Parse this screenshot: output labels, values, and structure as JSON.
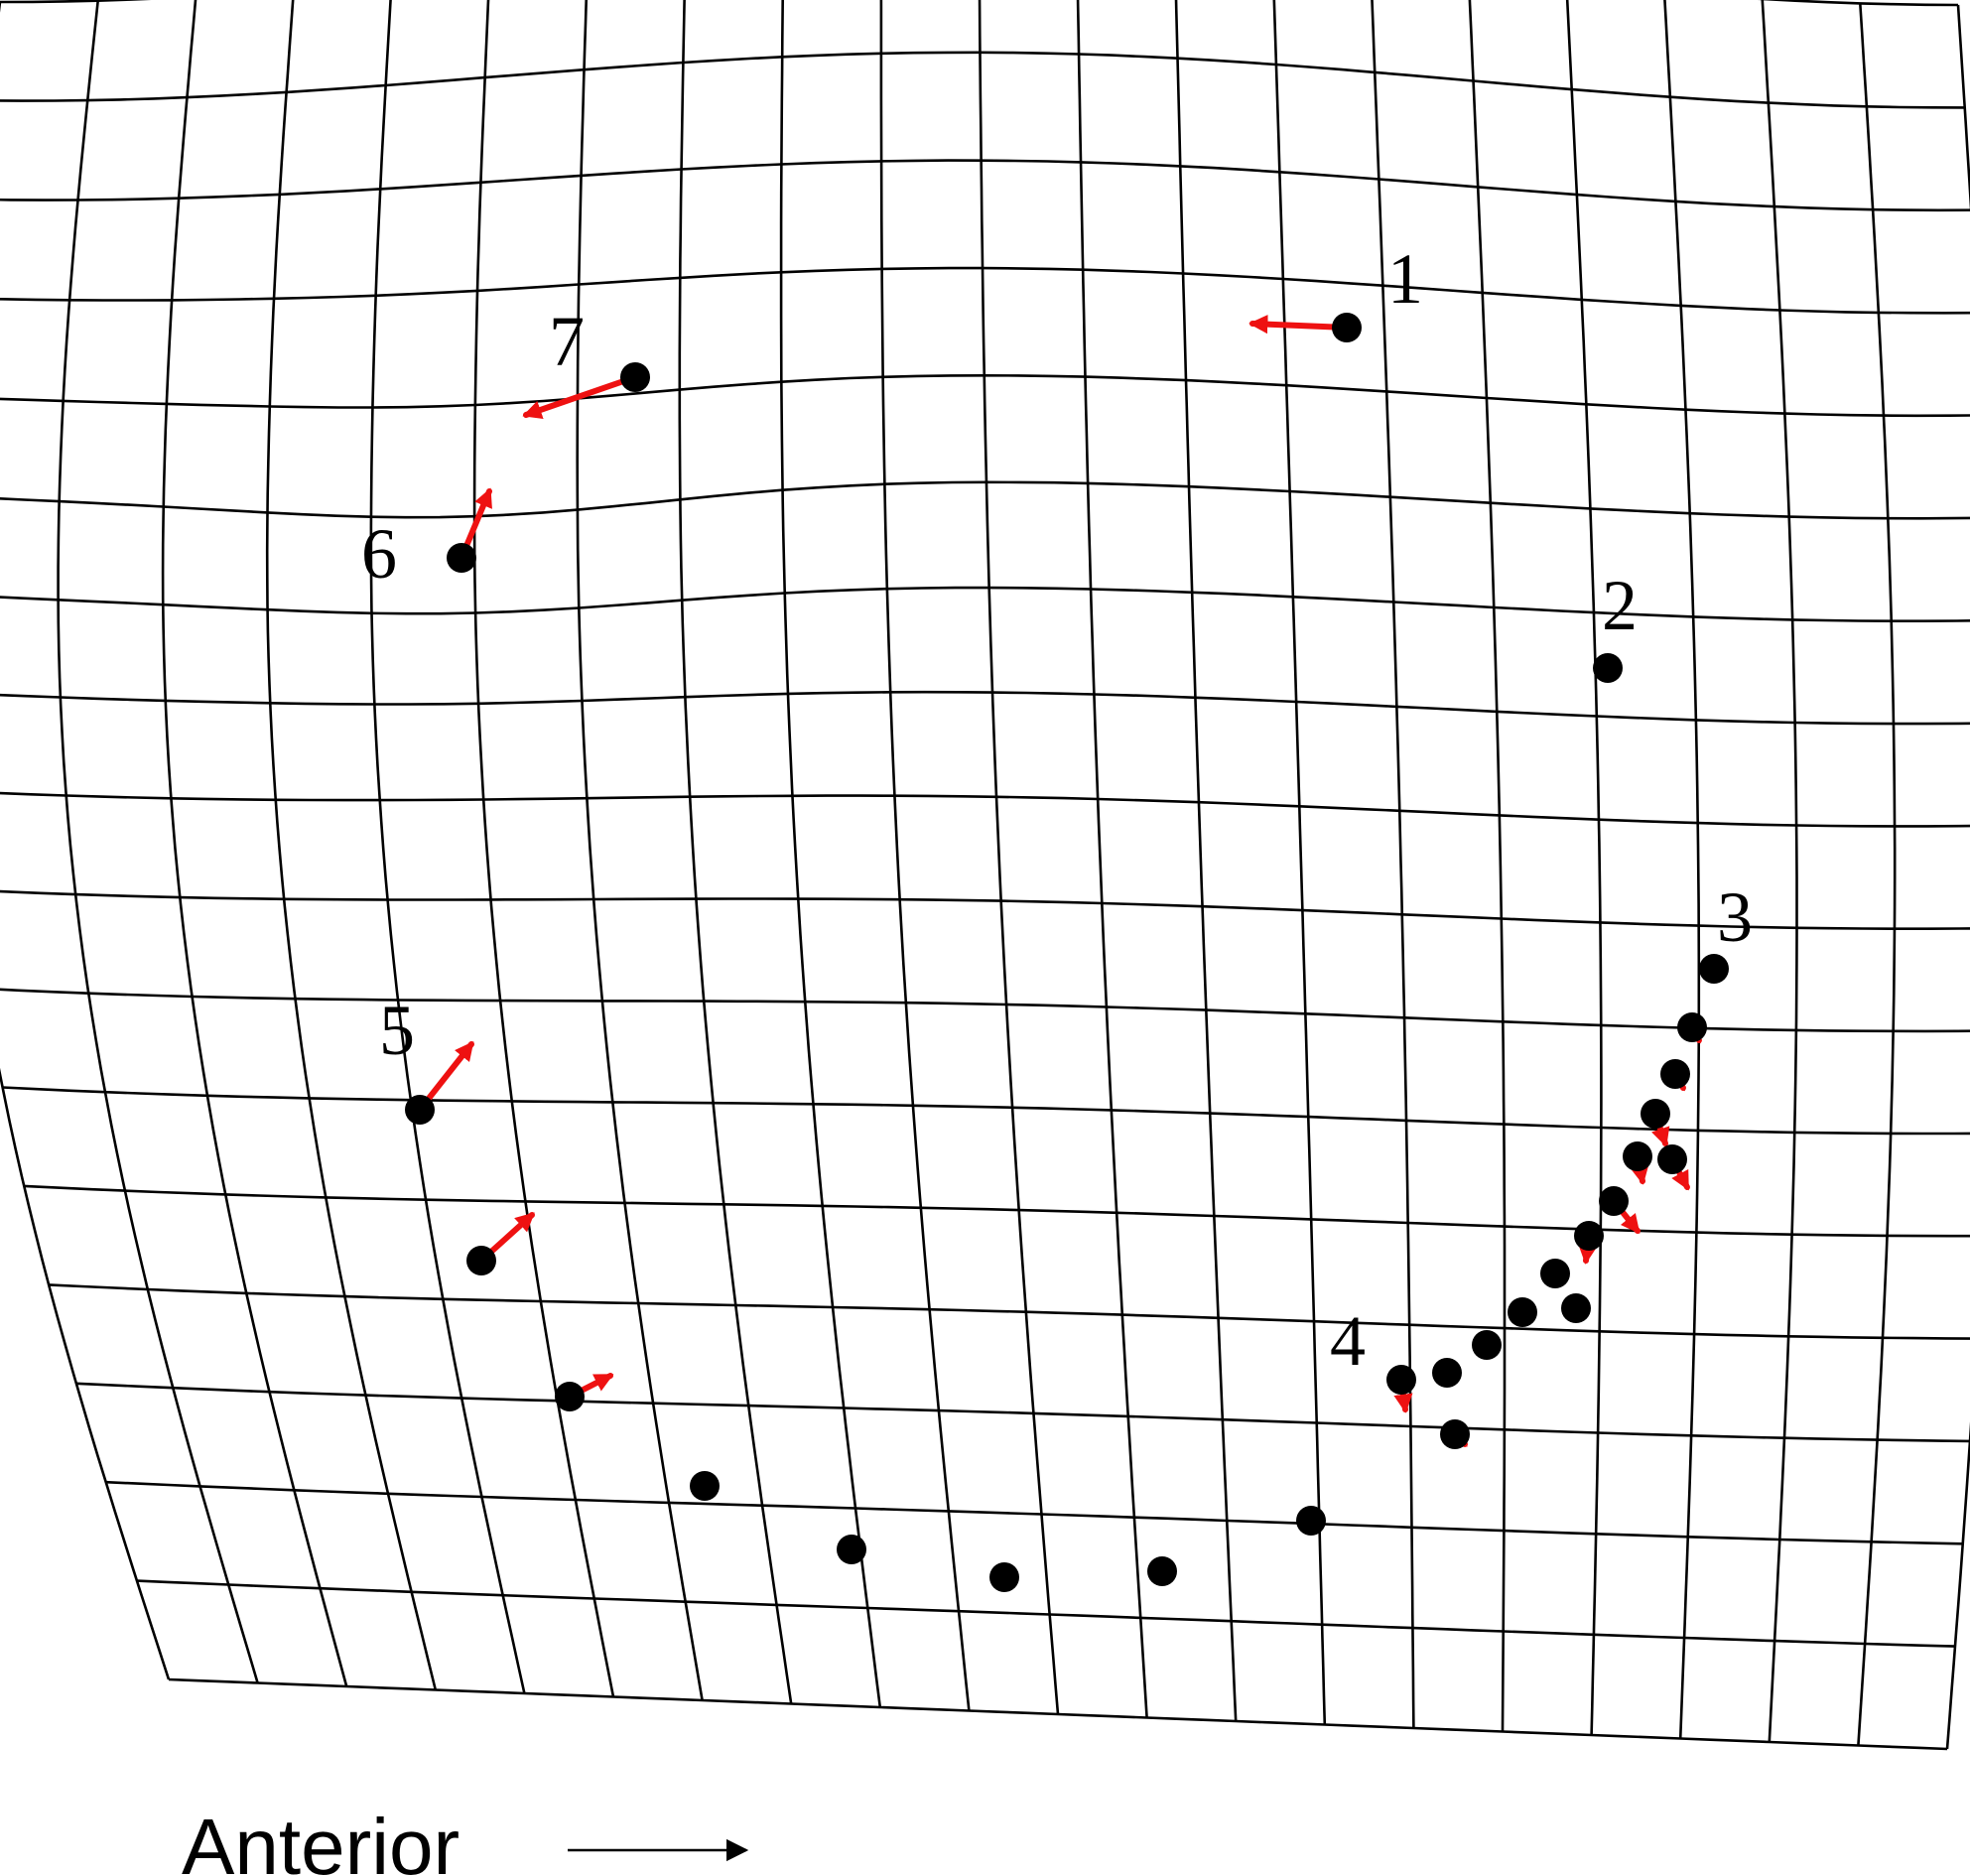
{
  "colors": {
    "grid": "#000000",
    "landmark": "#000000",
    "vector": "#ee1111",
    "background": "#ffffff"
  },
  "grid": {
    "columns": 20,
    "rows": 17
  },
  "labels": [
    "1",
    "2",
    "3",
    "4",
    "5",
    "6",
    "7"
  ],
  "direction": {
    "label": "Anterior",
    "icon": "arrow-right-icon"
  }
}
